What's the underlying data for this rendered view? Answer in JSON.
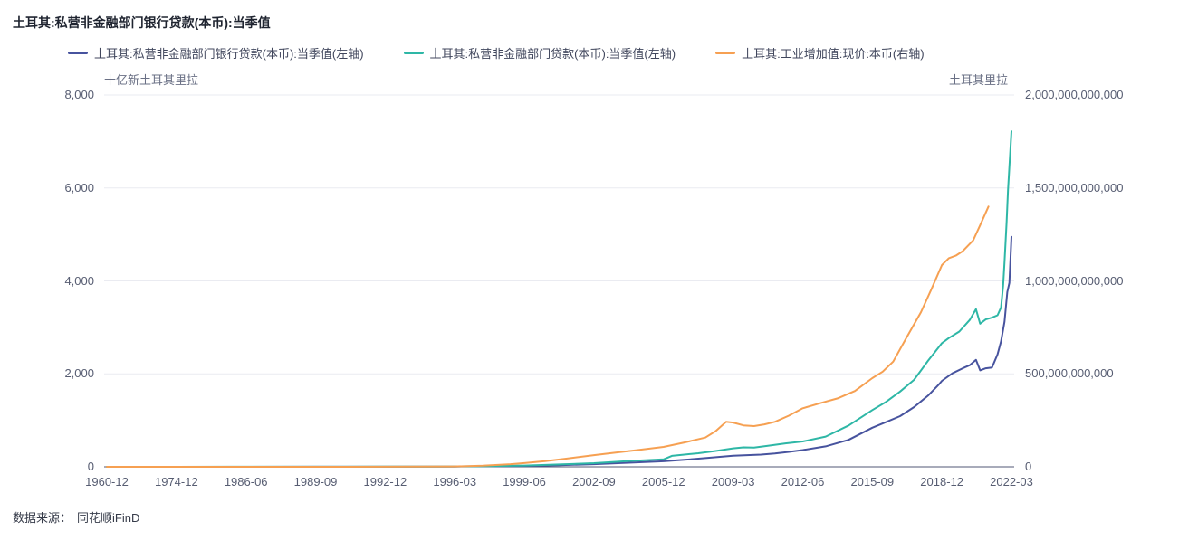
{
  "page": {
    "title": "土耳其:私营非金融部门银行贷款(本币):当季值"
  },
  "legend": {
    "items": [
      {
        "label": "土耳其:私营非金融部门银行贷款(本币):当季值(左轴)",
        "color": "#47539e"
      },
      {
        "label": "土耳其:私营非金融部门贷款(本币):当季值(左轴)",
        "color": "#2eb7a6"
      },
      {
        "label": "土耳其:工业增加值:现价:本币(右轴)",
        "color": "#f6a052"
      }
    ]
  },
  "footer": {
    "source_label": "数据来源：",
    "source_name": "同花顺iFinD"
  },
  "chart_data": {
    "type": "line",
    "title": "土耳其:私营非金融部门银行贷款(本币):当季值",
    "grid": true,
    "legend_position": "top",
    "x_axis": {
      "note": "quarterly category axis; series x values are in tick-interval units 0-13 indexing into ticks",
      "ticks": [
        "1960-12",
        "1974-12",
        "1986-06",
        "1989-09",
        "1992-12",
        "1996-03",
        "1999-06",
        "2002-09",
        "2005-12",
        "2009-03",
        "2012-06",
        "2015-09",
        "2018-12",
        "2022-03"
      ]
    },
    "left_axis": {
      "unit_label": "十亿新土耳其里拉",
      "ticks": [
        "8,000",
        "6,000",
        "4,000",
        "2,000",
        "0"
      ],
      "range": [
        0,
        8000
      ]
    },
    "right_axis": {
      "unit_label": "土耳其里拉",
      "ticks": [
        "2,000,000,000,000",
        "1,500,000,000,000",
        "1,000,000,000,000",
        "500,000,000,000",
        "0"
      ],
      "range_billion": [
        0,
        2000
      ]
    },
    "series": [
      {
        "name": "土耳其:私营非金融部门银行贷款(本币):当季值(左轴)",
        "axis": "left",
        "color": "#47539e",
        "unit": "十亿新土耳其里拉",
        "points": [
          [
            0,
            0
          ],
          [
            1,
            0.3
          ],
          [
            2,
            0.8
          ],
          [
            3,
            1.5
          ],
          [
            4,
            2.5
          ],
          [
            5,
            6
          ],
          [
            5.5,
            11
          ],
          [
            6,
            20
          ],
          [
            6.5,
            36
          ],
          [
            7,
            56
          ],
          [
            7.5,
            88
          ],
          [
            8,
            118
          ],
          [
            8.3,
            150
          ],
          [
            8.6,
            186
          ],
          [
            9,
            238
          ],
          [
            9.2,
            252
          ],
          [
            9.4,
            262
          ],
          [
            9.6,
            286
          ],
          [
            9.8,
            322
          ],
          [
            10,
            360
          ],
          [
            10.33,
            440
          ],
          [
            10.66,
            580
          ],
          [
            11,
            840
          ],
          [
            11.2,
            965
          ],
          [
            11.4,
            1090
          ],
          [
            11.6,
            1285
          ],
          [
            11.8,
            1530
          ],
          [
            11.95,
            1760
          ],
          [
            12,
            1850
          ],
          [
            12.15,
            2010
          ],
          [
            12.3,
            2120
          ],
          [
            12.4,
            2185
          ],
          [
            12.49,
            2300
          ],
          [
            12.55,
            2075
          ],
          [
            12.63,
            2120
          ],
          [
            12.72,
            2135
          ],
          [
            12.8,
            2420
          ],
          [
            12.85,
            2700
          ],
          [
            12.9,
            3120
          ],
          [
            12.94,
            3760
          ],
          [
            12.97,
            3960
          ],
          [
            13,
            4950
          ]
        ]
      },
      {
        "name": "土耳其:私营非金融部门贷款(本币):当季值(左轴)",
        "axis": "left",
        "color": "#2eb7a6",
        "unit": "十亿新土耳其里拉",
        "points": [
          [
            0,
            0
          ],
          [
            1,
            0.5
          ],
          [
            2,
            1
          ],
          [
            3,
            2
          ],
          [
            4,
            3
          ],
          [
            4.6,
            5
          ],
          [
            5,
            8
          ],
          [
            5.5,
            15
          ],
          [
            6,
            28
          ],
          [
            6.5,
            50
          ],
          [
            7,
            78
          ],
          [
            7.5,
            125
          ],
          [
            8,
            160
          ],
          [
            8.12,
            235
          ],
          [
            8.3,
            262
          ],
          [
            8.5,
            292
          ],
          [
            8.75,
            340
          ],
          [
            9,
            398
          ],
          [
            9.15,
            418
          ],
          [
            9.3,
            414
          ],
          [
            9.5,
            452
          ],
          [
            9.75,
            505
          ],
          [
            10,
            545
          ],
          [
            10.33,
            650
          ],
          [
            10.66,
            890
          ],
          [
            11,
            1220
          ],
          [
            11.2,
            1400
          ],
          [
            11.4,
            1620
          ],
          [
            11.6,
            1870
          ],
          [
            11.8,
            2280
          ],
          [
            11.9,
            2470
          ],
          [
            12,
            2660
          ],
          [
            12.1,
            2770
          ],
          [
            12.25,
            2910
          ],
          [
            12.4,
            3160
          ],
          [
            12.49,
            3390
          ],
          [
            12.55,
            3080
          ],
          [
            12.63,
            3170
          ],
          [
            12.72,
            3210
          ],
          [
            12.8,
            3260
          ],
          [
            12.85,
            3430
          ],
          [
            12.88,
            3900
          ],
          [
            12.9,
            4400
          ],
          [
            12.93,
            5250
          ],
          [
            12.95,
            5960
          ],
          [
            13,
            7220
          ]
        ]
      },
      {
        "name": "土耳其:工业增加值:现价:本币(右轴)",
        "axis": "right",
        "color": "#f6a052",
        "unit": "十亿土耳其里拉",
        "points": [
          [
            0,
            0
          ],
          [
            3,
            0.1
          ],
          [
            4,
            0.3
          ],
          [
            4.5,
            0.8
          ],
          [
            5,
            2
          ],
          [
            5.4,
            6
          ],
          [
            5.8,
            14
          ],
          [
            6,
            20
          ],
          [
            6.3,
            30
          ],
          [
            6.6,
            44
          ],
          [
            7,
            63
          ],
          [
            7.3,
            76
          ],
          [
            7.6,
            89
          ],
          [
            8,
            107
          ],
          [
            8.3,
            131
          ],
          [
            8.6,
            157
          ],
          [
            8.75,
            192
          ],
          [
            8.9,
            242
          ],
          [
            9,
            238
          ],
          [
            9.15,
            223
          ],
          [
            9.3,
            219
          ],
          [
            9.45,
            228
          ],
          [
            9.6,
            242
          ],
          [
            9.8,
            275
          ],
          [
            10,
            315
          ],
          [
            10.25,
            342
          ],
          [
            10.5,
            368
          ],
          [
            10.75,
            408
          ],
          [
            11,
            477
          ],
          [
            11.15,
            512
          ],
          [
            11.3,
            566
          ],
          [
            11.5,
            700
          ],
          [
            11.7,
            832
          ],
          [
            11.85,
            955
          ],
          [
            12,
            1085
          ],
          [
            12.1,
            1122
          ],
          [
            12.2,
            1136
          ],
          [
            12.3,
            1160
          ],
          [
            12.45,
            1218
          ],
          [
            12.55,
            1300
          ],
          [
            12.67,
            1400
          ]
        ]
      }
    ]
  }
}
